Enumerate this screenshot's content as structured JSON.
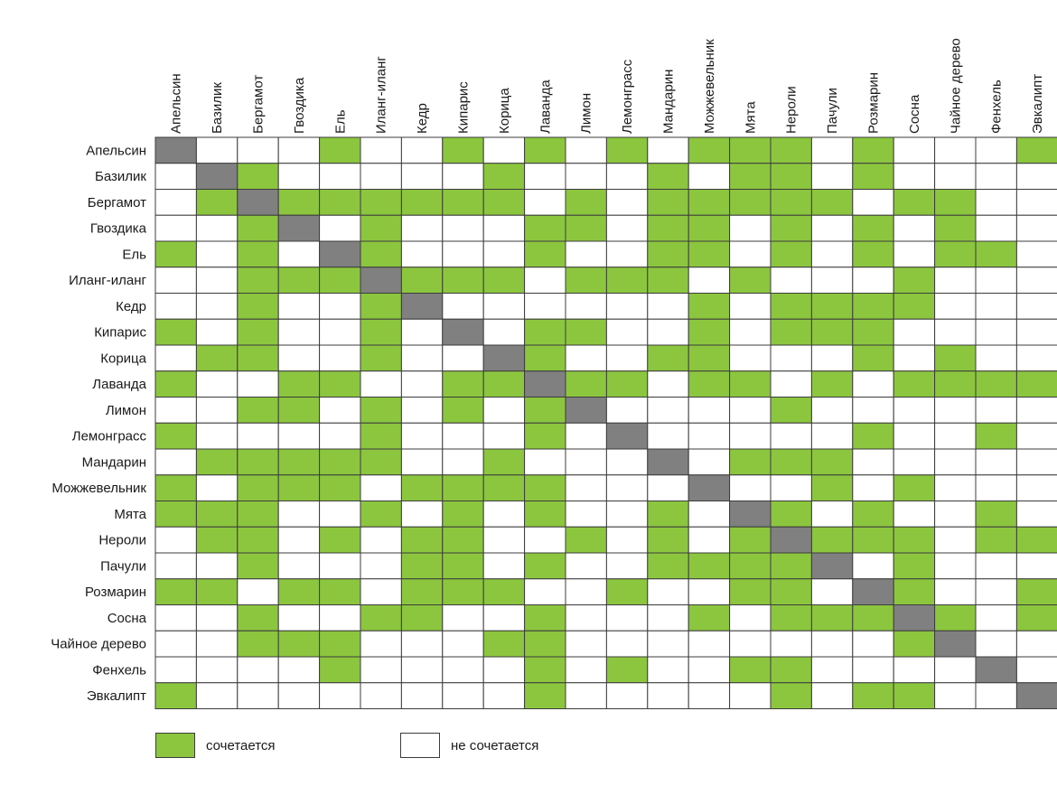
{
  "chart_data": {
    "type": "heatmap",
    "labels": [
      "Апельсин",
      "Базилик",
      "Бергамот",
      "Гвоздика",
      "Ель",
      "Иланг-иланг",
      "Кедр",
      "Кипарис",
      "Корица",
      "Лаванда",
      "Лимон",
      "Лемонграсс",
      "Мандарин",
      "Можжевельник",
      "Мята",
      "Нероли",
      "Пачули",
      "Розмарин",
      "Сосна",
      "Чайное дерево",
      "Фенхель",
      "Эвкалипт"
    ],
    "matrix": [
      [
        2,
        0,
        0,
        0,
        1,
        0,
        0,
        1,
        0,
        1,
        0,
        1,
        0,
        1,
        1,
        1,
        0,
        1,
        0,
        0,
        0,
        1
      ],
      [
        0,
        2,
        1,
        0,
        0,
        0,
        0,
        0,
        1,
        0,
        0,
        0,
        1,
        0,
        1,
        1,
        0,
        1,
        0,
        0,
        0,
        0
      ],
      [
        0,
        1,
        2,
        1,
        1,
        1,
        1,
        1,
        1,
        0,
        1,
        0,
        1,
        1,
        1,
        1,
        1,
        0,
        1,
        1,
        0,
        0
      ],
      [
        0,
        0,
        1,
        2,
        0,
        1,
        0,
        0,
        0,
        1,
        1,
        0,
        1,
        1,
        0,
        1,
        0,
        1,
        0,
        1,
        0,
        0
      ],
      [
        1,
        0,
        1,
        0,
        2,
        1,
        0,
        0,
        0,
        1,
        0,
        0,
        1,
        1,
        0,
        1,
        0,
        1,
        0,
        1,
        1,
        0
      ],
      [
        0,
        0,
        1,
        1,
        1,
        2,
        1,
        1,
        1,
        0,
        1,
        1,
        1,
        0,
        1,
        0,
        0,
        0,
        1,
        0,
        0,
        0
      ],
      [
        0,
        0,
        1,
        0,
        0,
        1,
        2,
        0,
        0,
        0,
        0,
        0,
        0,
        1,
        0,
        1,
        1,
        1,
        1,
        0,
        0,
        0
      ],
      [
        1,
        0,
        1,
        0,
        0,
        1,
        0,
        2,
        0,
        1,
        1,
        0,
        0,
        1,
        0,
        1,
        1,
        1,
        0,
        0,
        0,
        0
      ],
      [
        0,
        1,
        1,
        0,
        0,
        1,
        0,
        0,
        2,
        1,
        0,
        0,
        1,
        1,
        0,
        0,
        0,
        1,
        0,
        1,
        0,
        0
      ],
      [
        1,
        0,
        0,
        1,
        1,
        0,
        0,
        1,
        1,
        2,
        1,
        1,
        0,
        1,
        1,
        0,
        1,
        0,
        1,
        1,
        1,
        1
      ],
      [
        0,
        0,
        1,
        1,
        0,
        1,
        0,
        1,
        0,
        1,
        2,
        0,
        0,
        0,
        0,
        1,
        0,
        0,
        0,
        0,
        0,
        0
      ],
      [
        1,
        0,
        0,
        0,
        0,
        1,
        0,
        0,
        0,
        1,
        0,
        2,
        0,
        0,
        0,
        0,
        0,
        1,
        0,
        0,
        1,
        0
      ],
      [
        0,
        1,
        1,
        1,
        1,
        1,
        0,
        0,
        1,
        0,
        0,
        0,
        2,
        0,
        1,
        1,
        1,
        0,
        0,
        0,
        0,
        0
      ],
      [
        1,
        0,
        1,
        1,
        1,
        0,
        1,
        1,
        1,
        1,
        0,
        0,
        0,
        2,
        0,
        0,
        1,
        0,
        1,
        0,
        0,
        0
      ],
      [
        1,
        1,
        1,
        0,
        0,
        1,
        0,
        1,
        0,
        1,
        0,
        0,
        1,
        0,
        2,
        1,
        0,
        1,
        0,
        0,
        1,
        0
      ],
      [
        0,
        1,
        1,
        0,
        1,
        0,
        1,
        1,
        0,
        0,
        1,
        0,
        1,
        0,
        1,
        2,
        1,
        1,
        1,
        0,
        1,
        1
      ],
      [
        0,
        0,
        1,
        0,
        0,
        0,
        1,
        1,
        0,
        1,
        0,
        0,
        1,
        1,
        1,
        1,
        2,
        0,
        1,
        0,
        0,
        0
      ],
      [
        1,
        1,
        0,
        1,
        1,
        0,
        1,
        1,
        1,
        0,
        0,
        1,
        0,
        0,
        1,
        1,
        0,
        2,
        1,
        0,
        0,
        1
      ],
      [
        0,
        0,
        1,
        0,
        0,
        1,
        1,
        0,
        0,
        1,
        0,
        0,
        0,
        1,
        0,
        1,
        1,
        1,
        2,
        1,
        0,
        1
      ],
      [
        0,
        0,
        1,
        1,
        1,
        0,
        0,
        0,
        1,
        1,
        0,
        0,
        0,
        0,
        0,
        0,
        0,
        0,
        1,
        2,
        0,
        0
      ],
      [
        0,
        0,
        0,
        0,
        1,
        0,
        0,
        0,
        0,
        1,
        0,
        1,
        0,
        0,
        1,
        1,
        0,
        0,
        0,
        0,
        2,
        0
      ],
      [
        1,
        0,
        0,
        0,
        0,
        0,
        0,
        0,
        0,
        1,
        0,
        0,
        0,
        0,
        0,
        1,
        0,
        1,
        1,
        0,
        0,
        2
      ]
    ],
    "legend": [
      {
        "label": "сочетается",
        "color": "#8cc63f"
      },
      {
        "label": "не сочетается",
        "color": "#ffffff"
      }
    ],
    "colors": {
      "match": "#8cc63f",
      "no_match": "#ffffff",
      "diagonal": "#808080",
      "grid": "#3c3c3c"
    }
  }
}
